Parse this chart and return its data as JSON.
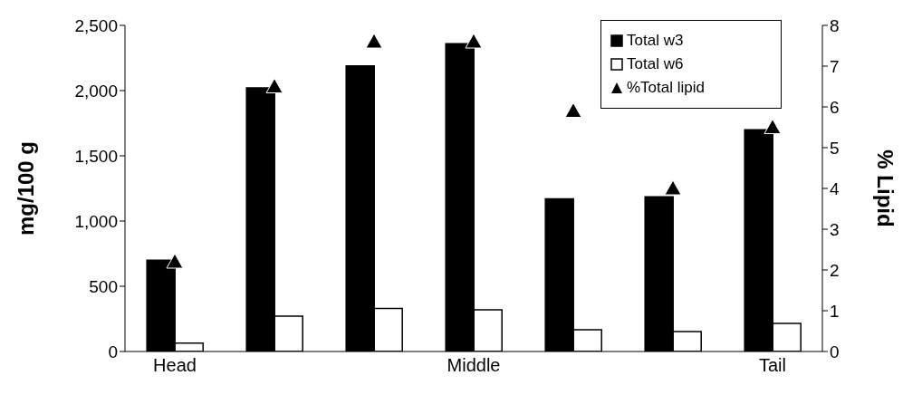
{
  "chart_data": {
    "type": "bar",
    "categories": [
      "Head",
      null,
      null,
      "Middle",
      null,
      null,
      "Tail"
    ],
    "ylabel": "mg/100 g",
    "y2label": "% Lipid",
    "ylim": [
      0,
      2500
    ],
    "yticks": [
      {
        "value": 0,
        "label": "0"
      },
      {
        "value": 500,
        "label": "500"
      },
      {
        "value": 1000,
        "label": "1,000"
      },
      {
        "value": 1500,
        "label": "1,500"
      },
      {
        "value": 2000,
        "label": "2,000"
      },
      {
        "value": 2500,
        "label": "2,500"
      }
    ],
    "y2lim": [
      0,
      8
    ],
    "y2ticks": [
      0,
      1,
      2,
      3,
      4,
      5,
      6,
      7,
      8
    ],
    "series": [
      {
        "name": "Total w3",
        "color": "#000000",
        "values": [
          700,
          2020,
          2190,
          2360,
          1170,
          1185,
          1700
        ]
      },
      {
        "name": "Total w6",
        "color": "#ffffff",
        "values": [
          65,
          270,
          330,
          320,
          166,
          152,
          215
        ]
      },
      {
        "name": "%Total lipid",
        "type": "scatter",
        "axis": "y2",
        "marker": "triangle",
        "color": "#000000",
        "values": [
          2.2,
          6.5,
          7.6,
          7.6,
          5.9,
          4.0,
          5.5
        ]
      }
    ],
    "legend": "top right",
    "grid": false
  }
}
